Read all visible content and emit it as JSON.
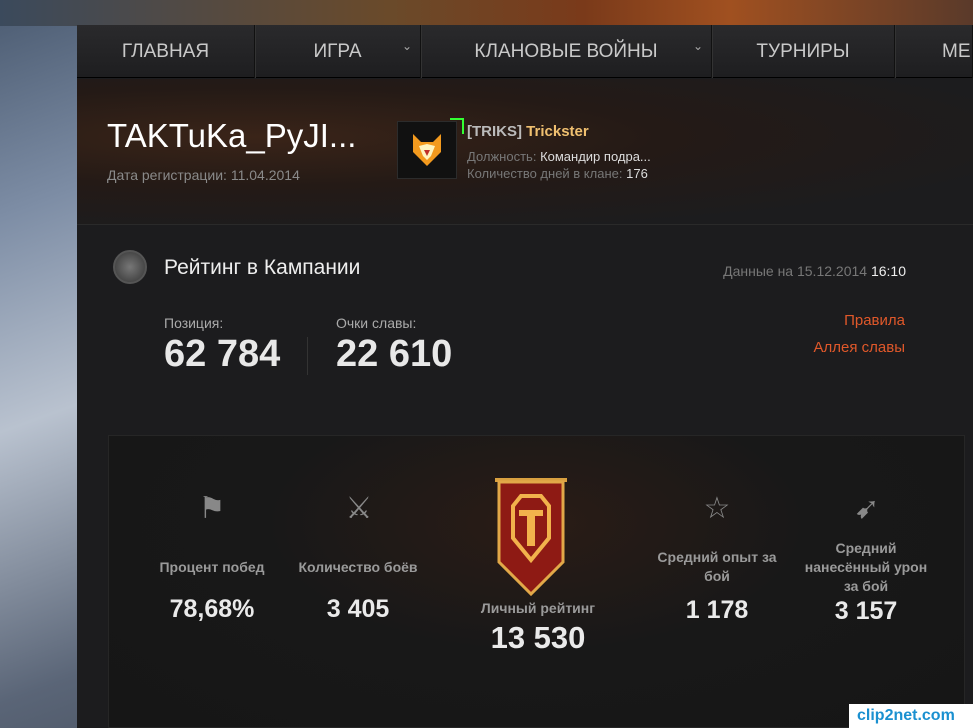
{
  "nav": {
    "items": [
      {
        "label": "ГЛАВНАЯ",
        "dropdown": false
      },
      {
        "label": "ИГРА",
        "dropdown": true
      },
      {
        "label": "КЛАНОВЫЕ ВОЙНЫ",
        "dropdown": true
      },
      {
        "label": "ТУРНИРЫ",
        "dropdown": false
      },
      {
        "label": "МЕ",
        "dropdown": false
      }
    ]
  },
  "player": {
    "name": "TAKTuKa_PyJI...",
    "reg_label": "Дата регистрации:",
    "reg_date": "11.04.2014"
  },
  "clan": {
    "tag": "[TRIKS]",
    "name": "Trickster",
    "position_label": "Должность:",
    "position": "Командир подра...",
    "days_label": "Количество дней в клане:",
    "days": "176"
  },
  "rating": {
    "title": "Рейтинг в Кампании",
    "date_label": "Данные на 15.12.2014",
    "time": "16:10",
    "position_label": "Позиция:",
    "position": "62 784",
    "glory_label": "Очки славы:",
    "glory": "22 610",
    "rules_link": "Правила",
    "hall_link": "Аллея славы"
  },
  "stats": {
    "win_label": "Процент побед",
    "win": "78,68%",
    "battles_label": "Количество боёв",
    "battles": "3 405",
    "personal_label": "Личный рейтинг",
    "personal": "13 530",
    "xp_label": "Средний опыт за бой",
    "xp": "1 178",
    "dmg_label": "Средний нанесённый урон за бой",
    "dmg": "3 157"
  },
  "colors": {
    "accent_link": "#e0582a",
    "clan_name": "#f0c070"
  },
  "watermark": "clip2net.com"
}
